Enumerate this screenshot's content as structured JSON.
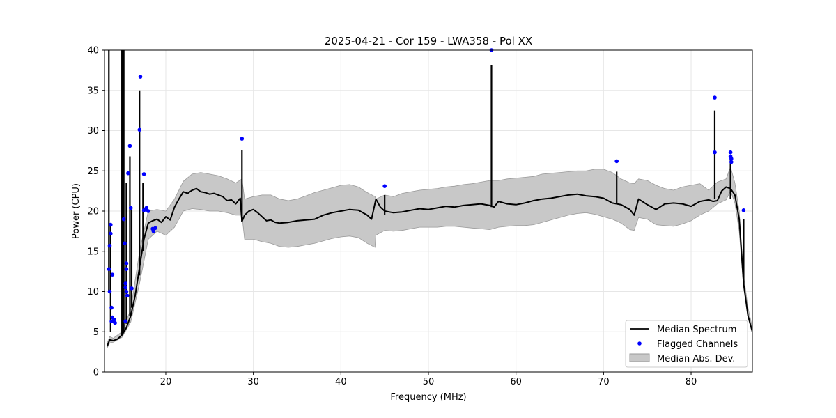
{
  "chart_data": {
    "type": "line",
    "title": "2025-04-21 - Cor 159 - LWA358 - Pol XX",
    "xlabel": "Frequency (MHz)",
    "ylabel": "Power (CPU)",
    "xlim": [
      13,
      87
    ],
    "ylim": [
      0,
      40
    ],
    "xticks": [
      20,
      30,
      40,
      50,
      60,
      70,
      80
    ],
    "yticks": [
      0,
      5,
      10,
      15,
      20,
      25,
      30,
      35,
      40
    ],
    "grid": true,
    "legend_position": "lower-right",
    "legend": [
      "Median Spectrum",
      "Flagged Channels",
      "Median Abs. Dev."
    ],
    "colors": {
      "median": "#000000",
      "flagged": "#0000ff",
      "mad_fill": "#c8c8c8",
      "mad_edge": "#9a9a9a"
    },
    "series": [
      {
        "name": "Median Spectrum",
        "kind": "line",
        "x": [
          13.3,
          13.6,
          14.0,
          14.5,
          15.0,
          15.5,
          16.0,
          16.5,
          17.0,
          17.5,
          18.0,
          18.5,
          19.0,
          19.5,
          20.0,
          20.5,
          21.0,
          21.5,
          22.0,
          22.5,
          23.0,
          23.5,
          24.0,
          24.5,
          25.0,
          25.5,
          26.0,
          26.5,
          27.0,
          27.5,
          28.0,
          28.5,
          28.7,
          29.0,
          29.5,
          30.0,
          30.5,
          31.0,
          31.5,
          32.0,
          32.5,
          33.0,
          34.0,
          35.0,
          36.0,
          37.0,
          38.0,
          39.0,
          40.0,
          41.0,
          42.0,
          43.0,
          43.5,
          44.0,
          44.5,
          45.0,
          45.5,
          46.0,
          47.0,
          48.0,
          49.0,
          50.0,
          51.0,
          52.0,
          53.0,
          54.0,
          55.0,
          56.0,
          57.0,
          57.5,
          58.0,
          59.0,
          60.0,
          61.0,
          62.0,
          63.0,
          64.0,
          65.0,
          66.0,
          67.0,
          68.0,
          69.0,
          70.0,
          71.0,
          72.0,
          73.0,
          73.5,
          74.0,
          75.0,
          76.0,
          77.0,
          78.0,
          79.0,
          80.0,
          81.0,
          82.0,
          82.5,
          83.0,
          83.5,
          84.0,
          84.5,
          85.0,
          85.5,
          86.0,
          86.5,
          87.0
        ],
        "y": [
          3.2,
          4.0,
          3.9,
          4.1,
          4.6,
          5.5,
          7.0,
          9.5,
          13.0,
          16.5,
          18.5,
          18.8,
          19.0,
          18.6,
          19.3,
          18.9,
          20.5,
          21.5,
          22.4,
          22.2,
          22.6,
          22.8,
          22.4,
          22.3,
          22.1,
          22.2,
          22.0,
          21.8,
          21.3,
          21.4,
          20.9,
          21.6,
          18.7,
          19.5,
          20.0,
          20.2,
          19.8,
          19.3,
          18.8,
          18.9,
          18.6,
          18.5,
          18.6,
          18.8,
          18.9,
          19.0,
          19.5,
          19.8,
          20.0,
          20.2,
          20.1,
          19.5,
          19.0,
          21.5,
          20.5,
          20.0,
          19.9,
          19.8,
          19.9,
          20.1,
          20.3,
          20.2,
          20.4,
          20.6,
          20.5,
          20.7,
          20.8,
          20.9,
          20.7,
          20.5,
          21.2,
          20.9,
          20.8,
          21.0,
          21.3,
          21.5,
          21.6,
          21.8,
          22.0,
          22.1,
          21.9,
          21.8,
          21.6,
          21.0,
          20.8,
          20.2,
          19.5,
          21.5,
          20.8,
          20.2,
          20.9,
          21.0,
          20.9,
          20.6,
          21.2,
          21.4,
          21.2,
          21.3,
          22.5,
          23.0,
          22.8,
          22.0,
          19.0,
          11.0,
          7.0,
          5.0
        ]
      },
      {
        "name": "Median Abs. Dev.",
        "kind": "band",
        "x": [
          13.3,
          13.6,
          14.0,
          15.0,
          16.0,
          17.0,
          18.0,
          19.0,
          20.0,
          21.0,
          22.0,
          23.0,
          24.0,
          25.0,
          26.0,
          27.0,
          28.0,
          28.7,
          29.0,
          30.0,
          31.0,
          32.0,
          33.0,
          34.0,
          35.0,
          36.0,
          37.0,
          38.0,
          39.0,
          40.0,
          41.0,
          42.0,
          43.0,
          43.9,
          44.0,
          45.0,
          46.0,
          47.0,
          48.0,
          49.0,
          50.0,
          51.0,
          52.0,
          53.0,
          54.0,
          55.0,
          56.0,
          57.0,
          58.0,
          59.0,
          60.0,
          61.0,
          62.0,
          63.0,
          64.0,
          65.0,
          66.0,
          67.0,
          68.0,
          69.0,
          70.0,
          71.0,
          72.0,
          73.0,
          73.5,
          74.0,
          75.0,
          76.0,
          77.0,
          78.0,
          79.0,
          80.0,
          81.0,
          82.0,
          83.0,
          84.0,
          84.5,
          85.0,
          85.5,
          86.0,
          86.5,
          87.0
        ],
        "lower": [
          3.0,
          3.6,
          3.7,
          4.3,
          6.2,
          11.0,
          16.5,
          17.5,
          17.0,
          18.0,
          20.0,
          20.3,
          20.2,
          20.0,
          20.0,
          19.8,
          19.5,
          19.5,
          16.5,
          16.5,
          16.2,
          16.0,
          15.6,
          15.5,
          15.6,
          15.8,
          16.0,
          16.3,
          16.6,
          16.8,
          16.9,
          16.7,
          16.0,
          15.5,
          17.0,
          17.6,
          17.5,
          17.6,
          17.8,
          18.0,
          18.0,
          18.0,
          18.1,
          18.1,
          18.0,
          17.9,
          17.8,
          17.7,
          18.0,
          18.1,
          18.2,
          18.2,
          18.3,
          18.6,
          18.9,
          19.2,
          19.5,
          19.7,
          19.8,
          19.6,
          19.3,
          19.0,
          18.5,
          17.7,
          17.6,
          19.2,
          19.0,
          18.3,
          18.2,
          18.1,
          18.4,
          18.8,
          19.5,
          20.0,
          20.9,
          21.4,
          22.5,
          21.0,
          17.5,
          10.5,
          6.8,
          4.8
        ],
        "upper": [
          3.6,
          4.4,
          4.2,
          5.0,
          7.8,
          15.0,
          20.0,
          20.2,
          20.0,
          21.5,
          23.7,
          24.6,
          24.8,
          24.6,
          24.4,
          24.0,
          23.5,
          24.0,
          21.5,
          21.8,
          22.0,
          22.0,
          21.5,
          21.3,
          21.5,
          21.9,
          22.3,
          22.6,
          22.9,
          23.2,
          23.3,
          23.0,
          22.3,
          21.8,
          21.5,
          22.0,
          21.8,
          22.2,
          22.4,
          22.6,
          22.7,
          22.8,
          23.0,
          23.1,
          23.3,
          23.4,
          23.6,
          23.8,
          23.8,
          24.0,
          24.1,
          24.2,
          24.3,
          24.6,
          24.7,
          24.8,
          24.9,
          25.0,
          25.0,
          25.2,
          25.2,
          24.8,
          24.0,
          23.5,
          23.4,
          24.0,
          23.8,
          23.2,
          22.8,
          22.6,
          23.0,
          23.2,
          23.4,
          22.6,
          23.6,
          24.0,
          25.5,
          23.5,
          20.0,
          12.0,
          8.0,
          5.5
        ]
      },
      {
        "name": "Flagged Channels",
        "kind": "points",
        "x": [
          13.5,
          13.6,
          13.6,
          13.7,
          13.7,
          13.8,
          13.8,
          13.9,
          13.9,
          14.0,
          14.1,
          14.2,
          15.2,
          15.3,
          15.4,
          15.4,
          15.4,
          15.5,
          15.5,
          15.5,
          15.6,
          15.7,
          15.9,
          16.0,
          16.1,
          17.0,
          17.1,
          17.5,
          17.5,
          17.7,
          17.8,
          18.0,
          18.5,
          18.6,
          18.8,
          28.7,
          45.0,
          57.2,
          71.5,
          82.7,
          82.7,
          84.5,
          84.5,
          84.6,
          84.6,
          86.0
        ],
        "y": [
          12.8,
          15.7,
          10.0,
          17.2,
          18.3,
          8.0,
          6.3,
          6.8,
          12.1,
          6.3,
          6.5,
          6.1,
          19.0,
          16.0,
          11.0,
          10.5,
          6.3,
          13.5,
          12.8,
          10.0,
          9.5,
          24.7,
          28.1,
          20.4,
          10.4,
          30.1,
          36.7,
          24.6,
          20.1,
          20.2,
          20.4,
          20.0,
          17.8,
          17.5,
          17.9,
          29.0,
          23.1,
          40.0,
          26.2,
          34.1,
          27.3,
          27.3,
          26.8,
          26.5,
          26.1,
          20.1
        ]
      }
    ],
    "spikes": [
      {
        "x": 13.5,
        "low": 10.0,
        "high": 40.0
      },
      {
        "x": 13.7,
        "low": 5.0,
        "high": 18.5
      },
      {
        "x": 15.0,
        "low": 4.6,
        "high": 40.0
      },
      {
        "x": 15.2,
        "low": 5.0,
        "high": 40.0
      },
      {
        "x": 15.5,
        "low": 6.0,
        "high": 23.5
      },
      {
        "x": 15.9,
        "low": 7.0,
        "high": 26.8
      },
      {
        "x": 16.1,
        "low": 8.0,
        "high": 20.5
      },
      {
        "x": 17.0,
        "low": 12.0,
        "high": 35.0
      },
      {
        "x": 17.4,
        "low": 15.0,
        "high": 23.5
      },
      {
        "x": 28.7,
        "low": 18.7,
        "high": 27.6
      },
      {
        "x": 45.0,
        "low": 19.5,
        "high": 22.0
      },
      {
        "x": 57.2,
        "low": 20.5,
        "high": 38.1
      },
      {
        "x": 71.5,
        "low": 21.0,
        "high": 24.9
      },
      {
        "x": 82.7,
        "low": 21.5,
        "high": 32.5
      },
      {
        "x": 84.5,
        "low": 21.5,
        "high": 26.5
      },
      {
        "x": 86.0,
        "low": 11.0,
        "high": 19.0
      }
    ]
  }
}
